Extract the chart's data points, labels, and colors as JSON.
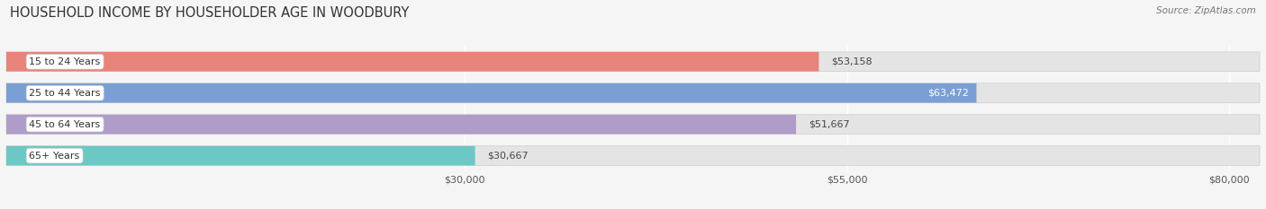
{
  "title": "HOUSEHOLD INCOME BY HOUSEHOLDER AGE IN WOODBURY",
  "source": "Source: ZipAtlas.com",
  "categories": [
    "15 to 24 Years",
    "25 to 44 Years",
    "45 to 64 Years",
    "65+ Years"
  ],
  "values": [
    53158,
    63472,
    51667,
    30667
  ],
  "bar_colors": [
    "#E8837A",
    "#7B9FD4",
    "#B09CC8",
    "#6BC8C4"
  ],
  "value_labels": [
    "$53,158",
    "$63,472",
    "$51,667",
    "$30,667"
  ],
  "label_inside": [
    false,
    true,
    false,
    false
  ],
  "xlim": [
    0,
    82000
  ],
  "xticks": [
    30000,
    55000,
    80000
  ],
  "xticklabels": [
    "$30,000",
    "$55,000",
    "$80,000"
  ],
  "background_color": "#f5f5f5",
  "bar_background_color": "#e4e4e4",
  "title_fontsize": 10.5,
  "source_fontsize": 7.5,
  "bar_height": 0.62,
  "bar_label_fontsize": 8,
  "cat_label_fontsize": 8
}
